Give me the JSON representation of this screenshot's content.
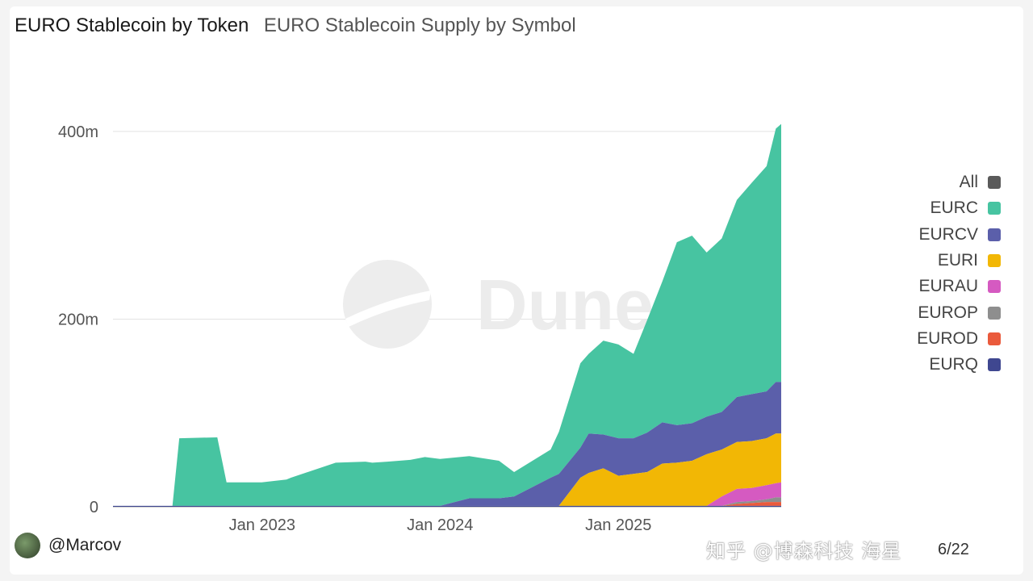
{
  "header": {
    "title": "EURO Stablecoin by Token",
    "subtitle": "EURO Stablecoin Supply by Symbol"
  },
  "chart_data": {
    "type": "area",
    "title": "EURO Stablecoin by Token",
    "subtitle": "EURO Stablecoin Supply by Symbol",
    "y_ticks": [
      "0",
      "200m",
      "400m"
    ],
    "x_ticks": [
      "Jan 2023",
      "Jan 2024",
      "Jan 2025"
    ],
    "ylim": [
      0,
      440
    ],
    "y_unit": "millions",
    "stacked": true,
    "grid": true,
    "legend_position": "right",
    "x_dates": [
      "2022-03-01",
      "2022-07-01",
      "2022-07-15",
      "2022-10-01",
      "2022-10-20",
      "2022-12-31",
      "2023-02-20",
      "2023-03-01",
      "2023-06-01",
      "2023-08-01",
      "2023-08-15",
      "2023-09-15",
      "2023-11-01",
      "2023-12-01",
      "2024-01-01",
      "2024-03-01",
      "2024-05-01",
      "2024-06-01",
      "2024-08-15",
      "2024-09-01",
      "2024-10-15",
      "2024-11-01",
      "2024-12-01",
      "2025-01-01",
      "2025-02-01",
      "2025-03-01",
      "2025-04-01",
      "2025-05-01",
      "2025-06-01",
      "2025-07-01",
      "2025-08-01",
      "2025-09-01",
      "2025-10-01",
      "2025-11-01",
      "2025-11-20",
      "2025-12-01"
    ],
    "series": [
      {
        "name": "EURC",
        "color": "#47c4a1",
        "values": [
          0,
          0,
          72,
          73,
          25,
          25,
          28,
          30,
          46,
          47,
          46,
          47,
          49,
          52,
          50,
          45,
          40,
          26,
          30,
          45,
          90,
          85,
          100,
          100,
          90,
          120,
          150,
          195,
          200,
          175,
          185,
          210,
          225,
          240,
          270,
          275
        ]
      },
      {
        "name": "EURCV",
        "color": "#5b5faa",
        "values": [
          0,
          0,
          0,
          0,
          0,
          0,
          0,
          0,
          0,
          0,
          0,
          0,
          0,
          0,
          0,
          8,
          8,
          10,
          30,
          34,
          32,
          42,
          36,
          40,
          38,
          42,
          44,
          40,
          40,
          40,
          40,
          48,
          50,
          50,
          55,
          55
        ]
      },
      {
        "name": "EURI",
        "color": "#f2b705",
        "values": [
          0,
          0,
          0,
          0,
          0,
          0,
          0,
          0,
          0,
          0,
          0,
          0,
          0,
          0,
          0,
          0,
          0,
          0,
          0,
          0,
          30,
          35,
          40,
          32,
          34,
          36,
          45,
          46,
          48,
          55,
          50,
          50,
          50,
          50,
          53,
          52
        ]
      },
      {
        "name": "EURAU",
        "color": "#d55ac1",
        "values": [
          0,
          0,
          0,
          0,
          0,
          0,
          0,
          0,
          0,
          0,
          0,
          0,
          0,
          0,
          0,
          0,
          0,
          0,
          0,
          0,
          0,
          0,
          0,
          0,
          0,
          0,
          0,
          0,
          0,
          0,
          10,
          14,
          14,
          15,
          15,
          16
        ]
      },
      {
        "name": "EUROP",
        "color": "#8e8e8e",
        "values": [
          0,
          0,
          0,
          0,
          0,
          0,
          0,
          0,
          0,
          0,
          0,
          0,
          0,
          0,
          0,
          0,
          0,
          0,
          0,
          0,
          0,
          0,
          0,
          0,
          0,
          0,
          0,
          0,
          0,
          0,
          0,
          2,
          2,
          3,
          5,
          5
        ]
      },
      {
        "name": "EUROD",
        "color": "#ea5a3c",
        "values": [
          0,
          0,
          0,
          0,
          0,
          0,
          0,
          0,
          0,
          0,
          0,
          0,
          0,
          0,
          0,
          0,
          0,
          0,
          0,
          0,
          0,
          0,
          0,
          0,
          0,
          0,
          0,
          0,
          0,
          0,
          0,
          2,
          3,
          4,
          4,
          4
        ]
      },
      {
        "name": "EURQ",
        "color": "#3f4790",
        "values": [
          1,
          1,
          1,
          1,
          1,
          1,
          1,
          1,
          1,
          1,
          1,
          1,
          1,
          1,
          1,
          1,
          1,
          1,
          1,
          1,
          1,
          1,
          1,
          1,
          1,
          1,
          1,
          1,
          1,
          1,
          1,
          1,
          1,
          1,
          1,
          1
        ]
      }
    ]
  },
  "legend": [
    {
      "label": "All",
      "color": "#5a5a5a"
    },
    {
      "label": "EURC",
      "color": "#47c4a1"
    },
    {
      "label": "EURCV",
      "color": "#5b5faa"
    },
    {
      "label": "EURI",
      "color": "#f2b705"
    },
    {
      "label": "EURAU",
      "color": "#d55ac1"
    },
    {
      "label": "EUROP",
      "color": "#8e8e8e"
    },
    {
      "label": "EUROD",
      "color": "#ea5a3c"
    },
    {
      "label": "EURQ",
      "color": "#3f4790"
    }
  ],
  "branding": {
    "watermark": "Dune"
  },
  "footer": {
    "author": "@Marcov",
    "cn_watermark": "知乎 @博森科技 海星",
    "page": "6/22"
  }
}
